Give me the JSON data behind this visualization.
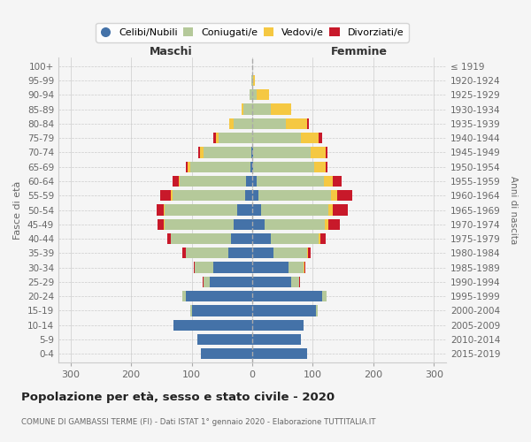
{
  "age_groups": [
    "0-4",
    "5-9",
    "10-14",
    "15-19",
    "20-24",
    "25-29",
    "30-34",
    "35-39",
    "40-44",
    "45-49",
    "50-54",
    "55-59",
    "60-64",
    "65-69",
    "70-74",
    "75-79",
    "80-84",
    "85-89",
    "90-94",
    "95-99",
    "100+"
  ],
  "birth_years": [
    "2015-2019",
    "2010-2014",
    "2005-2009",
    "2000-2004",
    "1995-1999",
    "1990-1994",
    "1985-1989",
    "1980-1984",
    "1975-1979",
    "1970-1974",
    "1965-1969",
    "1960-1964",
    "1955-1959",
    "1950-1954",
    "1945-1949",
    "1940-1944",
    "1935-1939",
    "1930-1934",
    "1925-1929",
    "1920-1924",
    "≤ 1919"
  ],
  "male": {
    "celibi": [
      85,
      90,
      130,
      100,
      110,
      70,
      65,
      40,
      35,
      30,
      25,
      12,
      10,
      3,
      1,
      0,
      0,
      0,
      0,
      0,
      0
    ],
    "coniugati": [
      0,
      0,
      0,
      2,
      5,
      10,
      30,
      70,
      100,
      115,
      120,
      120,
      110,
      100,
      80,
      55,
      30,
      15,
      4,
      1,
      0
    ],
    "vedovi": [
      0,
      0,
      0,
      0,
      0,
      0,
      0,
      0,
      0,
      1,
      1,
      2,
      2,
      3,
      5,
      5,
      8,
      3,
      1,
      0,
      0
    ],
    "divorziati": [
      0,
      0,
      0,
      0,
      0,
      2,
      2,
      5,
      5,
      10,
      12,
      18,
      10,
      4,
      3,
      5,
      0,
      0,
      0,
      0,
      0
    ]
  },
  "female": {
    "nubili": [
      90,
      80,
      85,
      105,
      115,
      65,
      60,
      35,
      30,
      20,
      15,
      10,
      8,
      2,
      1,
      0,
      0,
      0,
      0,
      0,
      0
    ],
    "coniugate": [
      0,
      0,
      0,
      3,
      8,
      12,
      25,
      55,
      80,
      100,
      110,
      120,
      110,
      100,
      95,
      80,
      55,
      30,
      8,
      2,
      0
    ],
    "vedove": [
      0,
      0,
      0,
      0,
      0,
      0,
      1,
      2,
      3,
      5,
      8,
      10,
      15,
      20,
      25,
      30,
      35,
      35,
      20,
      3,
      0
    ],
    "divorziate": [
      0,
      0,
      0,
      0,
      0,
      2,
      2,
      5,
      8,
      20,
      25,
      25,
      15,
      2,
      3,
      5,
      3,
      0,
      0,
      0,
      0
    ]
  },
  "colors": {
    "celibi": "#4472a8",
    "coniugati": "#b5c99a",
    "vedovi": "#f5c842",
    "divorziati": "#c8192a"
  },
  "xlim": 320,
  "title": "Popolazione per età, sesso e stato civile - 2020",
  "subtitle": "COMUNE DI GAMBASSI TERME (FI) - Dati ISTAT 1° gennaio 2020 - Elaborazione TUTTITALIA.IT",
  "ylabel_left": "Fasce di età",
  "ylabel_right": "Anni di nascita",
  "xlabel_left": "Maschi",
  "xlabel_right": "Femmine",
  "bg_color": "#f5f5f5",
  "grid_color": "#cccccc"
}
